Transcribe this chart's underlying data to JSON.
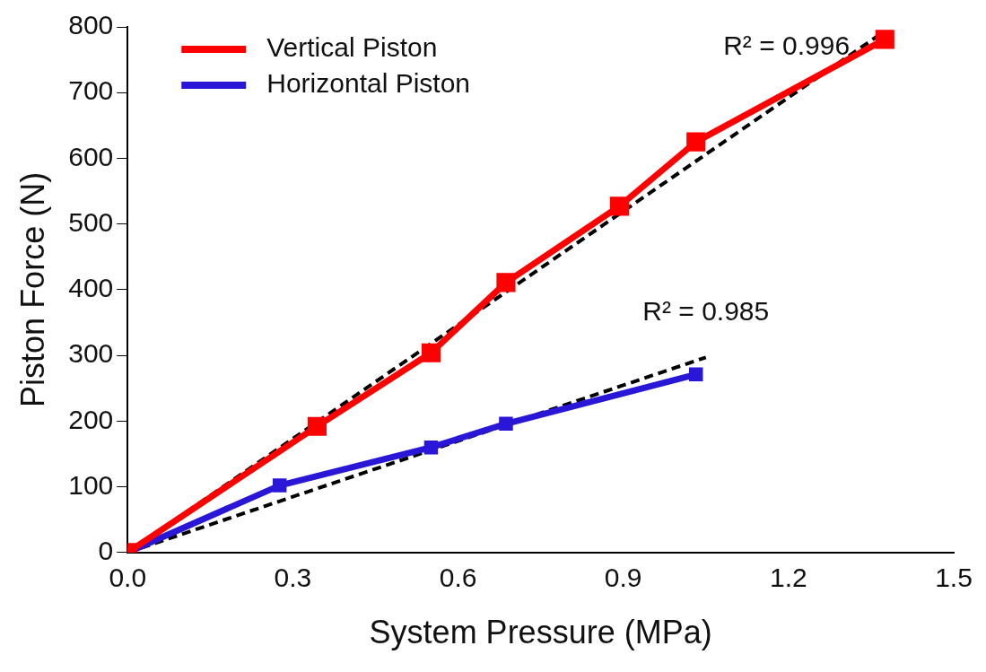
{
  "chart_data": {
    "type": "line",
    "xlabel": "System Pressure (MPa)",
    "ylabel": "Piston Force (N)",
    "xlim": [
      0,
      1.5
    ],
    "xticks": [
      {
        "value": 0,
        "label": "0.0"
      },
      0.3,
      0.6,
      0.9,
      1.2,
      1.5
    ],
    "ylim": [
      0,
      800
    ],
    "yticks": [
      0,
      100,
      200,
      300,
      400,
      500,
      600,
      700,
      800
    ],
    "grid": false,
    "legend": "top left",
    "marker": "square",
    "series": [
      {
        "name": "Vertical Piston",
        "color": "#ff0000",
        "x": [
          0,
          0.344,
          0.551,
          0.687,
          0.893,
          1.032,
          1.375
        ],
        "values": [
          0,
          192,
          304,
          411,
          527,
          625,
          781
        ]
      },
      {
        "name": "Horizontal Piston",
        "color": "#2a16d6",
        "x": [
          0,
          0.276,
          0.551,
          0.687,
          1.032
        ],
        "values": [
          0,
          102,
          160,
          196,
          271
        ]
      },
      {
        "type": "line",
        "color": "#000000",
        "x": [
          0,
          1.36
        ],
        "values": [
          0,
          785
        ],
        "line_style": "dashed",
        "marker": "none"
      },
      {
        "type": "line",
        "color": "#000000",
        "x": [
          0,
          1.05
        ],
        "values": [
          0,
          297
        ],
        "line_style": "dashed",
        "marker": "none"
      }
    ],
    "annotations": [
      {
        "text": "R² = 0.996",
        "x": 1.36,
        "y": 785
      },
      {
        "text": "R² = 0.985",
        "x": 1.05,
        "y": 297
      }
    ]
  }
}
